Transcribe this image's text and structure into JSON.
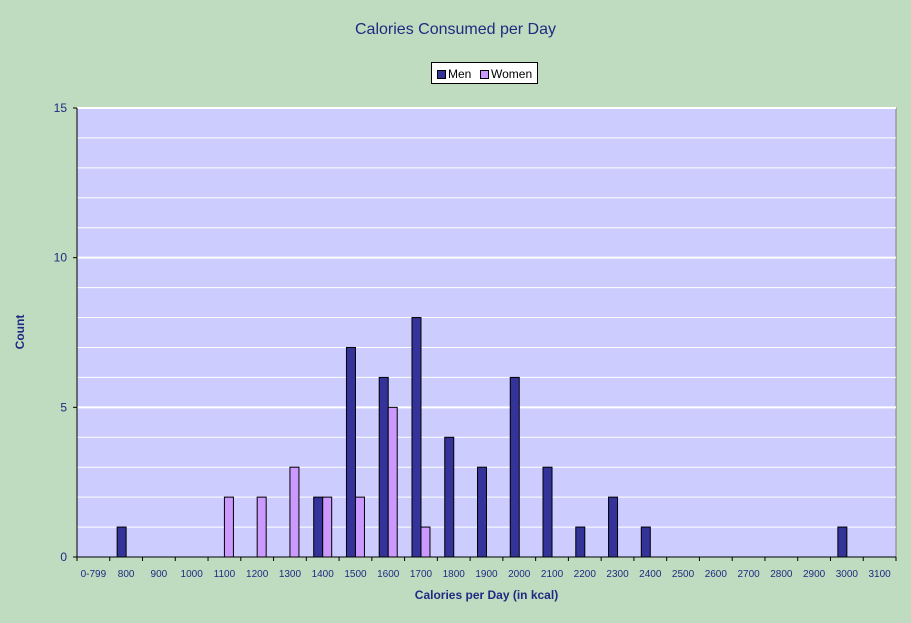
{
  "chart_data": {
    "type": "bar",
    "title": "Calories Consumed per Day",
    "xlabel": "Calories per Day (in kcal)",
    "ylabel": "Count",
    "ylim": [
      0,
      15
    ],
    "yticks": [
      "0",
      "5",
      "10",
      "15"
    ],
    "grid": true,
    "legend_position": "top-center",
    "categories": [
      "0-799",
      "800",
      "900",
      "1000",
      "1100",
      "1200",
      "1300",
      "1400",
      "1500",
      "1600",
      "1700",
      "1800",
      "1900",
      "2000",
      "2100",
      "2200",
      "2300",
      "2400",
      "2500",
      "2600",
      "2700",
      "2800",
      "2900",
      "3000",
      "3100"
    ],
    "series": [
      {
        "name": "Men",
        "color": "#333399",
        "values": [
          0,
          1,
          0,
          0,
          0,
          0,
          0,
          2,
          7,
          6,
          8,
          4,
          3,
          6,
          3,
          1,
          2,
          1,
          0,
          0,
          0,
          0,
          0,
          1,
          0
        ]
      },
      {
        "name": "Women",
        "color": "#cc99ff",
        "values": [
          0,
          0,
          0,
          0,
          2,
          2,
          3,
          2,
          2,
          5,
          1,
          0,
          0,
          0,
          0,
          0,
          0,
          0,
          0,
          0,
          0,
          0,
          0,
          0,
          0
        ]
      }
    ]
  },
  "colors": {
    "background": "#c0dcc0",
    "plot_area": "#ccccff",
    "text": "#1f2a80"
  }
}
